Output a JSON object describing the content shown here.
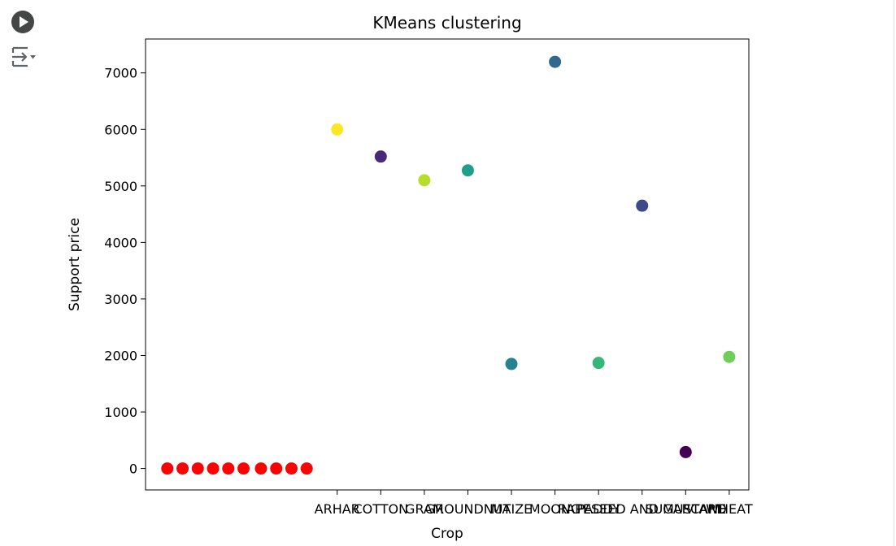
{
  "cell": {
    "run_icon": "play-circle-icon",
    "output_icon": "output-toggle-icon"
  },
  "chart_data": {
    "type": "scatter",
    "title": "KMeans clustering",
    "xlabel": "Crop",
    "ylabel": "Support price",
    "ylim": [
      -380,
      7600
    ],
    "yticks": [
      0,
      1000,
      2000,
      3000,
      4000,
      5000,
      6000,
      7000
    ],
    "xtick_labels": [
      "ARHAR",
      "COTTON",
      "GRAM",
      "GROUNDNUT",
      "MAIZE",
      "MOONG",
      "PADDY",
      "RAPESEED AND MUSTARD",
      "SUGARCANE",
      "WHEAT"
    ],
    "grid": false,
    "series": [
      {
        "color": "#ff0000",
        "points": [
          {
            "x": -3.9,
            "y": 0
          },
          {
            "x": -3.55,
            "y": 0
          },
          {
            "x": -3.2,
            "y": 0
          },
          {
            "x": -2.85,
            "y": 0
          },
          {
            "x": -2.5,
            "y": 0
          },
          {
            "x": -2.15,
            "y": 0
          },
          {
            "x": -1.75,
            "y": 0
          },
          {
            "x": -1.4,
            "y": 0
          },
          {
            "x": -1.05,
            "y": 0
          },
          {
            "x": -0.7,
            "y": 0
          }
        ]
      },
      {
        "color": "cluster-colormap",
        "points": [
          {
            "x": 0,
            "y": 6000,
            "color": "#fde725"
          },
          {
            "x": 1,
            "y": 5520,
            "color": "#482878"
          },
          {
            "x": 2,
            "y": 5100,
            "color": "#b5de2b"
          },
          {
            "x": 3,
            "y": 5275,
            "color": "#1f9e89"
          },
          {
            "x": 4,
            "y": 1850,
            "color": "#26828e"
          },
          {
            "x": 5,
            "y": 7196,
            "color": "#31688e"
          },
          {
            "x": 6,
            "y": 1868,
            "color": "#35b779"
          },
          {
            "x": 7,
            "y": 4650,
            "color": "#3e4989"
          },
          {
            "x": 8,
            "y": 290,
            "color": "#440154"
          },
          {
            "x": 9,
            "y": 1975,
            "color": "#6ece58"
          }
        ]
      }
    ]
  }
}
